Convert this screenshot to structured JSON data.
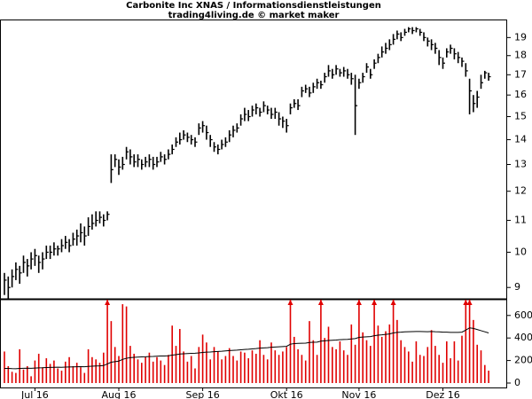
{
  "chart_data": [
    {
      "type": "ohlc",
      "title": "Carbonite Inc XNAS / Informationsdienstleistungen",
      "subtitle": "trading4living.de © market maker",
      "color": "#000000",
      "log_scale": true,
      "ylim": [
        8.7,
        20
      ],
      "yticks": [
        9,
        10,
        11,
        12,
        13,
        14,
        15,
        16,
        17,
        18,
        19
      ],
      "high": [
        9.4,
        9.3,
        9.5,
        9.7,
        9.6,
        9.9,
        9.8,
        10.0,
        10.1,
        9.9,
        10.0,
        10.2,
        10.2,
        10.3,
        10.2,
        10.4,
        10.5,
        10.4,
        10.6,
        10.7,
        10.9,
        10.8,
        11.1,
        11.2,
        11.3,
        11.3,
        11.2,
        11.3,
        13.4,
        13.4,
        13.2,
        13.3,
        13.7,
        13.6,
        13.4,
        13.4,
        13.2,
        13.3,
        13.4,
        13.3,
        13.3,
        13.5,
        13.4,
        13.6,
        13.8,
        14.1,
        14.3,
        14.4,
        14.3,
        14.2,
        14.1,
        14.7,
        14.8,
        14.6,
        14.2,
        13.9,
        13.8,
        14.0,
        14.1,
        14.4,
        14.6,
        14.7,
        15.1,
        15.4,
        15.3,
        15.5,
        15.6,
        15.4,
        15.7,
        15.5,
        15.4,
        15.4,
        15.2,
        15.0,
        14.9,
        15.6,
        15.8,
        15.8,
        16.4,
        16.5,
        16.4,
        16.6,
        16.8,
        16.7,
        17.1,
        17.5,
        17.3,
        17.5,
        17.3,
        17.4,
        17.3,
        17.1,
        17.0,
        16.8,
        17.1,
        17.6,
        17.3,
        17.8,
        18.1,
        18.5,
        18.7,
        18.9,
        19.2,
        19.4,
        19.3,
        19.5,
        19.6,
        19.6,
        19.6,
        19.5,
        19.3,
        19.0,
        18.9,
        18.7,
        18.3,
        17.9,
        18.4,
        18.6,
        18.4,
        18.2,
        17.9,
        17.6,
        16.8,
        16.0,
        16.2,
        17.0,
        17.2,
        17.1
      ],
      "low": [
        8.8,
        8.7,
        9.0,
        9.2,
        9.1,
        9.4,
        9.3,
        9.5,
        9.6,
        9.4,
        9.5,
        9.8,
        9.8,
        9.9,
        9.9,
        10.0,
        10.1,
        10.0,
        10.2,
        10.2,
        10.3,
        10.2,
        10.5,
        10.7,
        10.8,
        10.9,
        10.8,
        11.0,
        12.3,
        12.9,
        12.6,
        12.8,
        13.2,
        13.0,
        12.9,
        12.9,
        12.8,
        12.9,
        12.9,
        12.8,
        12.9,
        13.1,
        13.0,
        13.2,
        13.4,
        13.7,
        13.8,
        14.0,
        13.9,
        13.8,
        13.7,
        14.2,
        14.3,
        14.0,
        13.7,
        13.5,
        13.4,
        13.6,
        13.7,
        13.9,
        14.1,
        14.3,
        14.6,
        14.8,
        14.8,
        15.0,
        15.1,
        15.0,
        15.2,
        15.1,
        14.9,
        14.9,
        14.6,
        14.5,
        14.3,
        15.1,
        15.4,
        15.3,
        15.9,
        16.1,
        15.9,
        16.1,
        16.3,
        16.3,
        16.6,
        16.9,
        16.8,
        17.0,
        16.9,
        16.9,
        16.8,
        16.5,
        14.2,
        16.3,
        16.6,
        17.1,
        16.8,
        17.3,
        17.6,
        17.9,
        18.1,
        18.3,
        18.6,
        18.9,
        18.8,
        19.1,
        19.3,
        19.2,
        19.3,
        19.1,
        18.8,
        18.5,
        18.3,
        18.1,
        17.5,
        17.3,
        17.9,
        18.1,
        17.8,
        17.6,
        17.4,
        16.9,
        15.1,
        15.2,
        15.4,
        16.3,
        16.8,
        16.7
      ],
      "close": [
        9.2,
        9.0,
        9.3,
        9.5,
        9.4,
        9.7,
        9.6,
        9.8,
        9.9,
        9.7,
        9.8,
        10.0,
        10.0,
        10.1,
        10.1,
        10.2,
        10.3,
        10.2,
        10.4,
        10.5,
        10.6,
        10.5,
        10.8,
        10.9,
        11.0,
        11.1,
        11.0,
        11.2,
        12.8,
        13.2,
        12.9,
        13.0,
        13.5,
        13.3,
        13.1,
        13.2,
        13.0,
        13.1,
        13.2,
        13.0,
        13.1,
        13.3,
        13.2,
        13.4,
        13.6,
        13.9,
        14.0,
        14.2,
        14.1,
        14.0,
        13.9,
        14.5,
        14.6,
        14.3,
        14.0,
        13.7,
        13.6,
        13.8,
        13.9,
        14.2,
        14.4,
        14.5,
        14.9,
        15.1,
        15.0,
        15.3,
        15.4,
        15.2,
        15.5,
        15.3,
        15.1,
        15.2,
        14.9,
        14.8,
        14.6,
        15.4,
        15.6,
        15.5,
        16.2,
        16.3,
        16.1,
        16.4,
        16.6,
        16.5,
        16.9,
        17.2,
        17.0,
        17.3,
        17.1,
        17.2,
        17.0,
        16.8,
        15.5,
        16.6,
        16.9,
        17.4,
        17.0,
        17.6,
        17.9,
        18.2,
        18.4,
        18.6,
        18.9,
        19.2,
        19.0,
        19.3,
        19.5,
        19.4,
        19.5,
        19.3,
        19.0,
        18.8,
        18.6,
        18.4,
        17.9,
        17.6,
        18.2,
        18.4,
        18.1,
        17.9,
        17.7,
        17.2,
        16.2,
        15.6,
        15.9,
        16.6,
        17.1,
        16.9
      ]
    },
    {
      "type": "volume",
      "ylim": [
        0,
        740
      ],
      "yticks": [
        0,
        200,
        400,
        600
      ],
      "categories": [
        null,
        null,
        null,
        null,
        null,
        null,
        null,
        null,
        "Jul 16",
        null,
        null,
        null,
        null,
        null,
        null,
        null,
        null,
        null,
        null,
        null,
        null,
        null,
        null,
        null,
        null,
        null,
        null,
        null,
        null,
        null,
        "Aug 16",
        null,
        null,
        null,
        null,
        null,
        null,
        null,
        null,
        null,
        null,
        null,
        null,
        null,
        null,
        null,
        null,
        null,
        null,
        null,
        null,
        null,
        "Sep 16",
        null,
        null,
        null,
        null,
        null,
        null,
        null,
        null,
        null,
        null,
        null,
        null,
        null,
        null,
        null,
        null,
        null,
        null,
        null,
        null,
        null,
        "Okt 16",
        null,
        null,
        null,
        null,
        null,
        null,
        null,
        null,
        null,
        null,
        null,
        null,
        null,
        null,
        null,
        null,
        null,
        null,
        "Nov 16",
        null,
        null,
        null,
        null,
        null,
        null,
        null,
        null,
        null,
        null,
        null,
        null,
        null,
        null,
        null,
        null,
        null,
        null,
        null,
        null,
        null,
        "Dez 16",
        null,
        null,
        null,
        null,
        null,
        null,
        null,
        null,
        null,
        null,
        null,
        null
      ],
      "series": [
        {
          "type": "bar",
          "color": "#e00000",
          "values": [
            280,
            150,
            100,
            90,
            300,
            120,
            150,
            60,
            200,
            260,
            140,
            220,
            170,
            200,
            130,
            110,
            190,
            230,
            150,
            180,
            140,
            90,
            300,
            230,
            210,
            180,
            270,
            800,
            550,
            320,
            240,
            700,
            680,
            330,
            260,
            210,
            180,
            230,
            270,
            190,
            230,
            200,
            160,
            250,
            510,
            330,
            480,
            280,
            190,
            240,
            130,
            320,
            430,
            360,
            210,
            320,
            280,
            210,
            240,
            310,
            240,
            200,
            280,
            270,
            220,
            290,
            260,
            380,
            250,
            210,
            360,
            290,
            250,
            280,
            320,
            800,
            410,
            300,
            250,
            200,
            550,
            380,
            250,
            800,
            400,
            500,
            320,
            300,
            370,
            290,
            250,
            520,
            340,
            800,
            450,
            380,
            330,
            800,
            510,
            410,
            460,
            520,
            800,
            560,
            380,
            320,
            280,
            190,
            370,
            250,
            240,
            320,
            470,
            330,
            250,
            180,
            370,
            220,
            370,
            200,
            420,
            800,
            800,
            560,
            340,
            290,
            160,
            110
          ]
        },
        {
          "type": "line",
          "color": "#000000",
          "values": [
            130,
            130,
            128,
            127,
            130,
            131,
            132,
            131,
            133,
            135,
            136,
            138,
            139,
            140,
            141,
            140,
            142,
            143,
            144,
            145,
            146,
            145,
            148,
            150,
            152,
            153,
            155,
            170,
            185,
            190,
            195,
            210,
            220,
            225,
            228,
            230,
            232,
            233,
            235,
            236,
            238,
            240,
            240,
            242,
            248,
            252,
            258,
            260,
            262,
            264,
            265,
            268,
            272,
            275,
            276,
            278,
            280,
            282,
            285,
            288,
            290,
            292,
            295,
            298,
            300,
            303,
            306,
            310,
            312,
            314,
            318,
            320,
            322,
            324,
            326,
            345,
            350,
            352,
            353,
            354,
            360,
            362,
            363,
            372,
            375,
            378,
            380,
            382,
            385,
            387,
            388,
            392,
            395,
            405,
            408,
            410,
            412,
            420,
            425,
            428,
            432,
            436,
            445,
            450,
            452,
            455,
            456,
            457,
            458,
            458,
            457,
            456,
            458,
            456,
            455,
            452,
            452,
            450,
            450,
            450,
            452,
            470,
            490,
            485,
            475,
            465,
            455,
            445
          ]
        }
      ]
    }
  ]
}
